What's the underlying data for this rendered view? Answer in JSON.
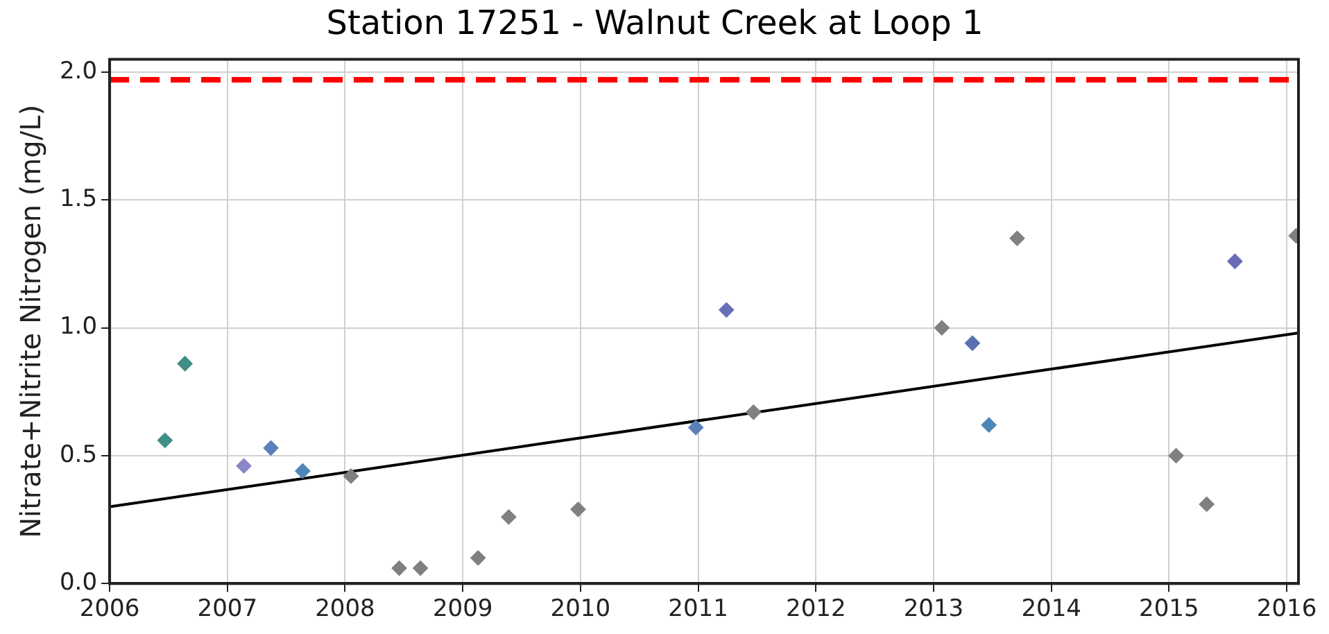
{
  "chart_data": {
    "type": "scatter",
    "title": "Station 17251 - Walnut Creek at Loop 1",
    "ylabel": "Nitrate+Nitrite Nitrogen (mg/L)",
    "xlim": [
      2006,
      2016.1
    ],
    "xticks": [
      2006,
      2007,
      2008,
      2009,
      2010,
      2011,
      2012,
      2013,
      2014,
      2015,
      2016
    ],
    "ylim": [
      0,
      2.05
    ],
    "yticks": [
      {
        "value": 0,
        "label": "0.0"
      },
      {
        "value": 0.5,
        "label": "0.5"
      },
      {
        "value": 1,
        "label": "1.0"
      },
      {
        "value": 1.5,
        "label": "1.5"
      },
      {
        "value": 2,
        "label": "2.0"
      }
    ],
    "grid": true,
    "legend": false,
    "marker": "diamond",
    "series": [
      {
        "x": [
          2006.47,
          2006.64,
          2007.14,
          2007.37,
          2007.64,
          2008.05,
          2008.46,
          2008.64,
          2009.13,
          2009.39,
          2009.98,
          2010.98,
          2011.24,
          2011.47,
          2013.07,
          2013.33,
          2013.47,
          2013.71,
          2015.06,
          2015.32,
          2015.56,
          2016.08
        ],
        "values": [
          0.56,
          0.86,
          0.46,
          0.53,
          0.44,
          0.42,
          0.06,
          0.06,
          0.1,
          0.26,
          0.29,
          0.61,
          1.07,
          0.67,
          1.0,
          0.94,
          0.62,
          1.35,
          0.5,
          0.31,
          1.26,
          1.36
        ],
        "colors": [
          "#3f8f86",
          "#3f8f86",
          "#8a86c8",
          "#5a80b8",
          "#4f86b8",
          "#808080",
          "#808080",
          "#808080",
          "#808080",
          "#808080",
          "#808080",
          "#5a80b8",
          "#6a70b8",
          "#808080",
          "#808080",
          "#5a70b0",
          "#4f86b8",
          "#808080",
          "#808080",
          "#808080",
          "#6a6ab8",
          "#808080"
        ]
      },
      {
        "type": "line",
        "x": [
          2006,
          2016.1
        ],
        "values": [
          0.3,
          0.98
        ],
        "color": "#000000",
        "marker": "none",
        "line_style": "solid"
      }
    ],
    "ref_lines": [
      {
        "axis": "y",
        "value": 1.97,
        "color": "#ff0000",
        "line_style": "dashed"
      }
    ]
  }
}
